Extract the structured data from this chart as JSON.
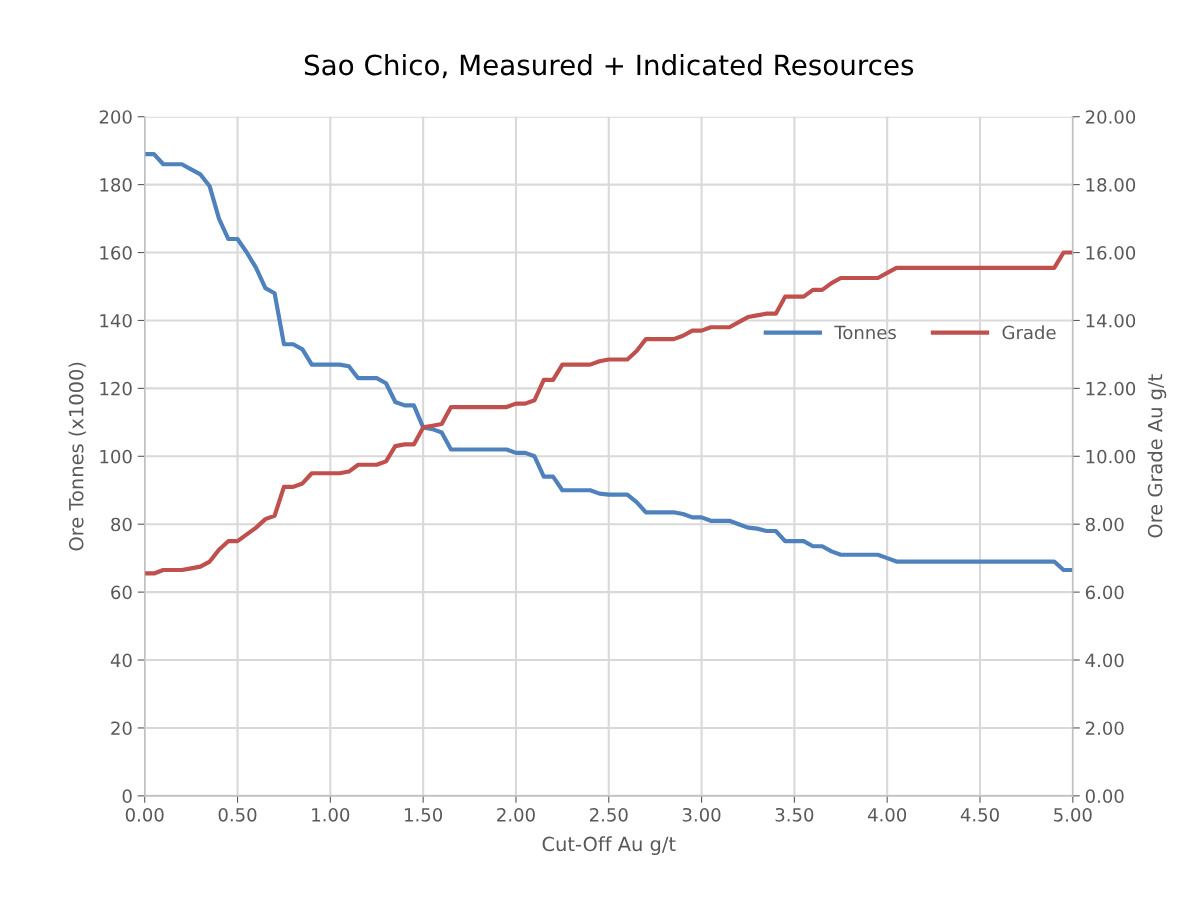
{
  "chart_data": {
    "type": "line",
    "title": "Sao Chico, Measured + Indicated Resources",
    "xlabel": "Cut-Off Au g/t",
    "ylabel": "Ore Tonnes (x1000)",
    "y2label": "Ore Grade Au g/t",
    "xlim": [
      0,
      5
    ],
    "xticks": [
      {
        "value": 0,
        "label": "0.00"
      },
      {
        "value": 0.5,
        "label": "0.50"
      },
      {
        "value": 1,
        "label": "1.00"
      },
      {
        "value": 1.5,
        "label": "1.50"
      },
      {
        "value": 2,
        "label": "2.00"
      },
      {
        "value": 2.5,
        "label": "2.50"
      },
      {
        "value": 3,
        "label": "3.00"
      },
      {
        "value": 3.5,
        "label": "3.50"
      },
      {
        "value": 4,
        "label": "4.00"
      },
      {
        "value": 4.5,
        "label": "4.50"
      },
      {
        "value": 5,
        "label": "5.00"
      }
    ],
    "ylim": [
      0,
      200
    ],
    "yticks": [
      0,
      20,
      40,
      60,
      80,
      100,
      120,
      140,
      160,
      180,
      200
    ],
    "y2lim": [
      0,
      20
    ],
    "y2ticks": [
      {
        "value": 0,
        "label": "0.00"
      },
      {
        "value": 2,
        "label": "2.00"
      },
      {
        "value": 4,
        "label": "4.00"
      },
      {
        "value": 6,
        "label": "6.00"
      },
      {
        "value": 8,
        "label": "8.00"
      },
      {
        "value": 10,
        "label": "10.00"
      },
      {
        "value": 12,
        "label": "12.00"
      },
      {
        "value": 14,
        "label": "14.00"
      },
      {
        "value": 16,
        "label": "16.00"
      },
      {
        "value": 18,
        "label": "18.00"
      },
      {
        "value": 20,
        "label": "20.00"
      }
    ],
    "grid": true,
    "legend": "right",
    "marker": "none",
    "line_style": "solid",
    "series": [
      {
        "name": "Tonnes",
        "color": "#4f81bd",
        "x": [
          0,
          0.05,
          0.1,
          0.2,
          0.25,
          0.3,
          0.35,
          0.4,
          0.45,
          0.5,
          0.55,
          0.6,
          0.65,
          0.7,
          0.75,
          0.8,
          0.85,
          0.9,
          1.05,
          1.1,
          1.15,
          1.25,
          1.3,
          1.35,
          1.4,
          1.45,
          1.5,
          1.55,
          1.6,
          1.65,
          1.95,
          2.0,
          2.05,
          2.1,
          2.15,
          2.2,
          2.25,
          2.4,
          2.45,
          2.5,
          2.6,
          2.65,
          2.7,
          2.85,
          2.9,
          2.95,
          3.0,
          3.05,
          3.15,
          3.2,
          3.25,
          3.3,
          3.35,
          3.4,
          3.45,
          3.55,
          3.6,
          3.65,
          3.7,
          3.75,
          3.95,
          4.0,
          4.05,
          4.9,
          4.95,
          5.0
        ],
        "values": [
          189,
          189,
          186,
          186,
          184.5,
          183,
          179.5,
          170,
          164,
          164,
          160,
          155.5,
          149.5,
          148,
          133,
          133,
          131.5,
          127,
          127,
          126.5,
          123,
          123,
          121.5,
          116,
          115,
          115,
          108.5,
          108,
          107,
          102,
          102,
          101,
          101,
          100,
          94,
          94,
          90,
          90,
          89,
          88.7,
          88.7,
          86.5,
          83.5,
          83.5,
          83,
          82,
          82,
          81,
          81,
          80,
          79,
          78.7,
          78,
          78,
          75,
          75,
          73.5,
          73.5,
          72,
          71,
          71,
          70,
          69,
          69,
          66.5,
          66.5
        ]
      },
      {
        "name": "Grade",
        "color": "#c0504d",
        "axis": "y2",
        "x": [
          0,
          0.05,
          0.1,
          0.2,
          0.25,
          0.3,
          0.35,
          0.4,
          0.45,
          0.5,
          0.55,
          0.6,
          0.65,
          0.7,
          0.75,
          0.8,
          0.85,
          0.9,
          1.05,
          1.1,
          1.15,
          1.25,
          1.3,
          1.35,
          1.4,
          1.45,
          1.5,
          1.55,
          1.6,
          1.65,
          1.95,
          2.0,
          2.05,
          2.1,
          2.15,
          2.2,
          2.25,
          2.4,
          2.45,
          2.5,
          2.6,
          2.65,
          2.7,
          2.85,
          2.9,
          2.95,
          3.0,
          3.05,
          3.15,
          3.2,
          3.25,
          3.3,
          3.35,
          3.4,
          3.45,
          3.55,
          3.6,
          3.65,
          3.7,
          3.75,
          3.95,
          4.0,
          4.05,
          4.9,
          4.95,
          5.0
        ],
        "values": [
          6.55,
          6.55,
          6.65,
          6.65,
          6.7,
          6.75,
          6.9,
          7.25,
          7.5,
          7.5,
          7.7,
          7.9,
          8.15,
          8.25,
          9.1,
          9.1,
          9.2,
          9.5,
          9.5,
          9.55,
          9.75,
          9.75,
          9.85,
          10.3,
          10.35,
          10.35,
          10.85,
          10.9,
          10.95,
          11.45,
          11.45,
          11.55,
          11.55,
          11.65,
          12.25,
          12.25,
          12.7,
          12.7,
          12.8,
          12.85,
          12.85,
          13.1,
          13.45,
          13.45,
          13.55,
          13.7,
          13.7,
          13.8,
          13.8,
          13.95,
          14.1,
          14.15,
          14.2,
          14.2,
          14.7,
          14.7,
          14.9,
          14.9,
          15.1,
          15.25,
          15.25,
          15.4,
          15.55,
          15.55,
          16.0,
          16.0
        ]
      }
    ]
  }
}
